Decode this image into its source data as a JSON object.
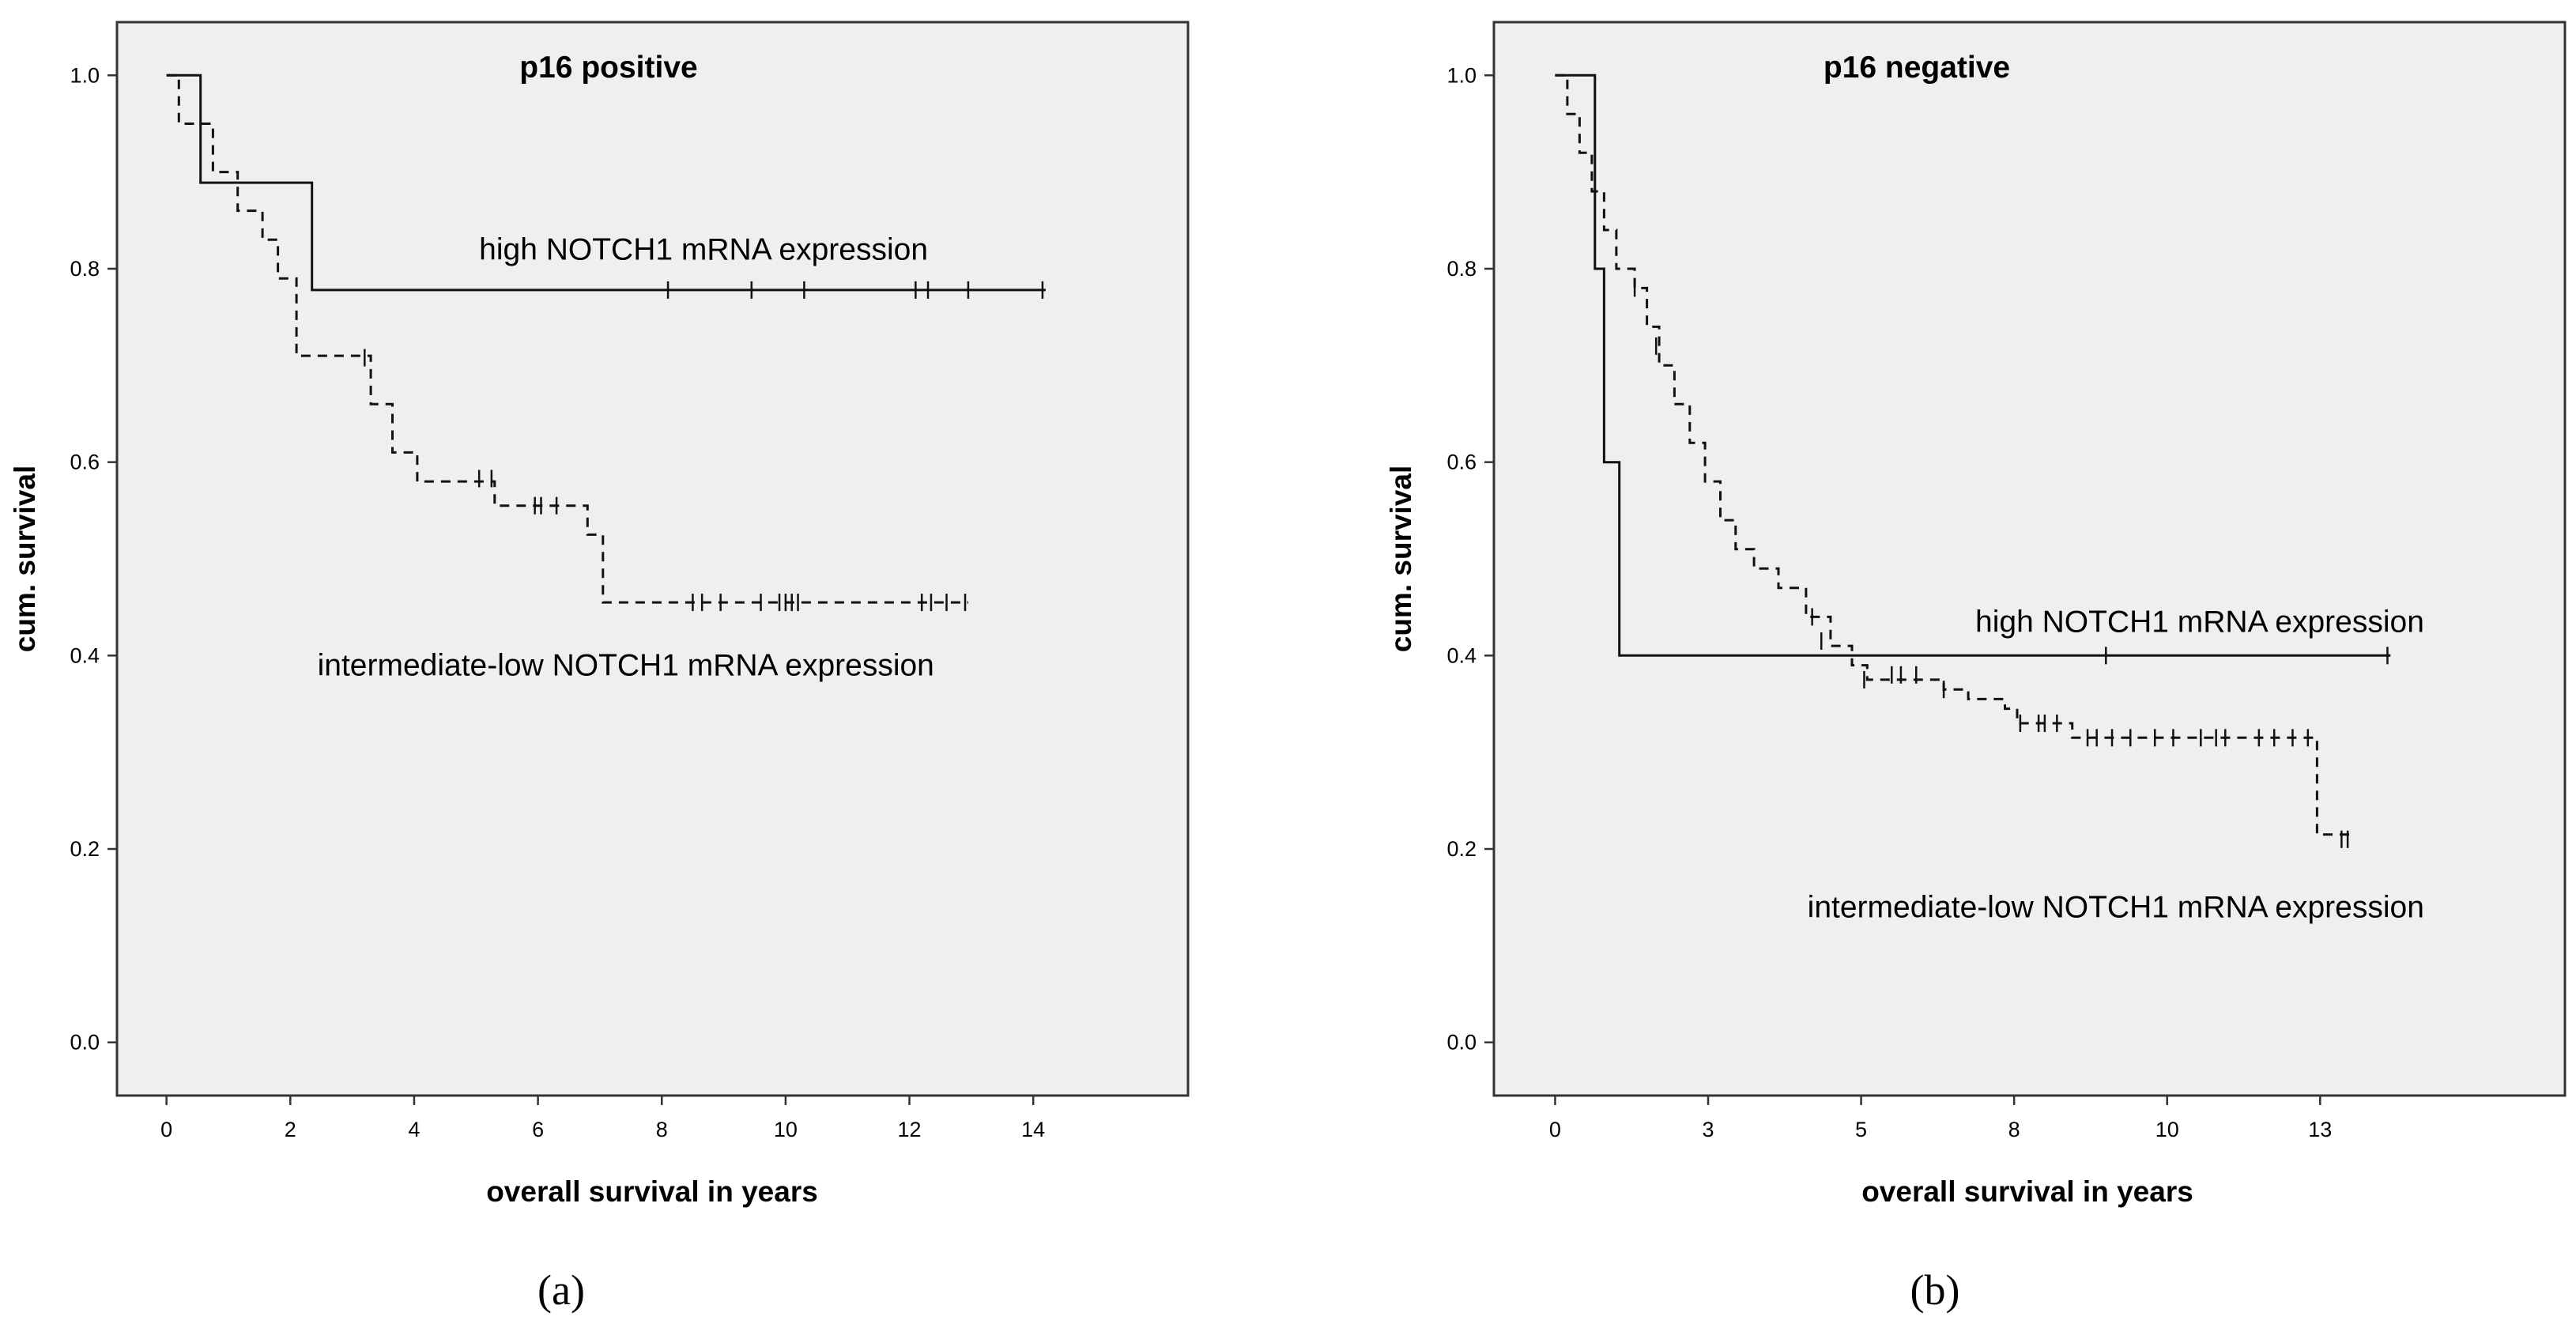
{
  "chart_data": [
    {
      "type": "line",
      "subtype": "kaplan-meier",
      "panel_label": "(a)",
      "title": "p16 positive",
      "xlabel": "overall survival in years",
      "ylabel": "cum. survival",
      "xlim": [
        -0.8,
        16.5
      ],
      "ylim": [
        -0.055,
        1.055
      ],
      "xticks": [
        0,
        2,
        4,
        6,
        8,
        10,
        12,
        14
      ],
      "xtick_labels": [
        "0",
        "2",
        "4",
        "6",
        "8",
        "10",
        "12",
        "14"
      ],
      "yticks": [
        0.0,
        0.2,
        0.4,
        0.6,
        0.8,
        1.0
      ],
      "ytick_labels": [
        "0.0",
        "0.2",
        "0.4",
        "0.6",
        "0.8",
        "1.0"
      ],
      "series": [
        {
          "name": "high NOTCH1 mRNA expression",
          "style": "solid",
          "label_anchor": [
            12.3,
            0.82
          ],
          "steps": [
            [
              0,
              1.0
            ],
            [
              0.55,
              0.889
            ],
            [
              2.35,
              0.778
            ],
            [
              14.2,
              0.778
            ]
          ],
          "censored": [
            [
              8.1,
              0.778
            ],
            [
              9.45,
              0.778
            ],
            [
              10.3,
              0.778
            ],
            [
              12.1,
              0.778
            ],
            [
              12.3,
              0.778
            ],
            [
              12.95,
              0.778
            ],
            [
              14.15,
              0.778
            ]
          ]
        },
        {
          "name": "intermediate-low NOTCH1 mRNA expression",
          "style": "dashed",
          "label_anchor": [
            12.4,
            0.39
          ],
          "steps": [
            [
              0,
              1.0
            ],
            [
              0.2,
              0.95
            ],
            [
              0.75,
              0.9
            ],
            [
              1.15,
              0.86
            ],
            [
              1.55,
              0.83
            ],
            [
              1.8,
              0.79
            ],
            [
              2.1,
              0.71
            ],
            [
              3.3,
              0.66
            ],
            [
              3.65,
              0.61
            ],
            [
              4.05,
              0.58
            ],
            [
              5.3,
              0.555
            ],
            [
              6.8,
              0.525
            ],
            [
              7.05,
              0.455
            ],
            [
              12.95,
              0.455
            ]
          ],
          "censored": [
            [
              3.2,
              0.708
            ],
            [
              5.05,
              0.583
            ],
            [
              5.25,
              0.583
            ],
            [
              5.95,
              0.555
            ],
            [
              6.05,
              0.555
            ],
            [
              6.3,
              0.555
            ],
            [
              8.5,
              0.455
            ],
            [
              8.65,
              0.455
            ],
            [
              8.95,
              0.455
            ],
            [
              9.6,
              0.455
            ],
            [
              9.9,
              0.455
            ],
            [
              10.0,
              0.455
            ],
            [
              10.1,
              0.455
            ],
            [
              10.2,
              0.455
            ],
            [
              12.2,
              0.455
            ],
            [
              12.35,
              0.455
            ],
            [
              12.6,
              0.455
            ],
            [
              12.9,
              0.455
            ]
          ]
        }
      ]
    },
    {
      "type": "line",
      "subtype": "kaplan-meier",
      "panel_label": "(b)",
      "title": "p16 negative",
      "xlabel": "overall survival in years",
      "ylabel": "cum. survival",
      "xlim": [
        -1.0,
        16.5
      ],
      "ylim": [
        -0.055,
        1.055
      ],
      "xticks": [
        0,
        2.5,
        5,
        7.5,
        10,
        12.5
      ],
      "xtick_labels": [
        "0",
        "3",
        "5",
        "8",
        "10",
        "13"
      ],
      "yticks": [
        0.0,
        0.2,
        0.4,
        0.6,
        0.8,
        1.0
      ],
      "ytick_labels": [
        "0.0",
        "0.2",
        "0.4",
        "0.6",
        "0.8",
        "1.0"
      ],
      "series": [
        {
          "name": "high NOTCH1 mRNA expression",
          "style": "solid",
          "label_anchor": [
            14.2,
            0.435
          ],
          "steps": [
            [
              0,
              1.0
            ],
            [
              0.65,
              0.8
            ],
            [
              0.8,
              0.6
            ],
            [
              1.05,
              0.4
            ],
            [
              13.65,
              0.4
            ]
          ],
          "censored": [
            [
              9.0,
              0.4
            ],
            [
              13.6,
              0.4
            ]
          ]
        },
        {
          "name": "intermediate-low NOTCH1 mRNA expression",
          "style": "dashed",
          "label_anchor": [
            14.2,
            0.14
          ],
          "steps": [
            [
              0,
              1.0
            ],
            [
              0.2,
              0.96
            ],
            [
              0.4,
              0.92
            ],
            [
              0.6,
              0.88
            ],
            [
              0.8,
              0.84
            ],
            [
              1.0,
              0.8
            ],
            [
              1.3,
              0.78
            ],
            [
              1.5,
              0.74
            ],
            [
              1.7,
              0.7
            ],
            [
              1.95,
              0.66
            ],
            [
              2.2,
              0.62
            ],
            [
              2.45,
              0.58
            ],
            [
              2.7,
              0.54
            ],
            [
              2.95,
              0.51
            ],
            [
              3.25,
              0.49
            ],
            [
              3.65,
              0.47
            ],
            [
              4.1,
              0.44
            ],
            [
              4.5,
              0.41
            ],
            [
              4.85,
              0.39
            ],
            [
              5.1,
              0.375
            ],
            [
              6.35,
              0.365
            ],
            [
              6.75,
              0.355
            ],
            [
              7.35,
              0.345
            ],
            [
              7.55,
              0.33
            ],
            [
              8.45,
              0.315
            ],
            [
              12.4,
              0.315
            ],
            [
              12.45,
              0.215
            ],
            [
              13.0,
              0.215
            ]
          ],
          "censored": [
            [
              1.3,
              0.78
            ],
            [
              1.65,
              0.72
            ],
            [
              4.2,
              0.44
            ],
            [
              4.35,
              0.415
            ],
            [
              5.05,
              0.375
            ],
            [
              5.5,
              0.38
            ],
            [
              5.65,
              0.38
            ],
            [
              5.9,
              0.38
            ],
            [
              6.35,
              0.365
            ],
            [
              7.6,
              0.33
            ],
            [
              7.9,
              0.33
            ],
            [
              8.0,
              0.33
            ],
            [
              8.2,
              0.33
            ],
            [
              8.7,
              0.315
            ],
            [
              8.85,
              0.315
            ],
            [
              9.1,
              0.315
            ],
            [
              9.4,
              0.315
            ],
            [
              9.8,
              0.315
            ],
            [
              10.1,
              0.315
            ],
            [
              10.55,
              0.315
            ],
            [
              10.8,
              0.315
            ],
            [
              10.95,
              0.315
            ],
            [
              11.5,
              0.315
            ],
            [
              11.75,
              0.315
            ],
            [
              12.05,
              0.315
            ],
            [
              12.3,
              0.315
            ],
            [
              12.85,
              0.21
            ],
            [
              12.95,
              0.21
            ]
          ]
        }
      ]
    }
  ]
}
